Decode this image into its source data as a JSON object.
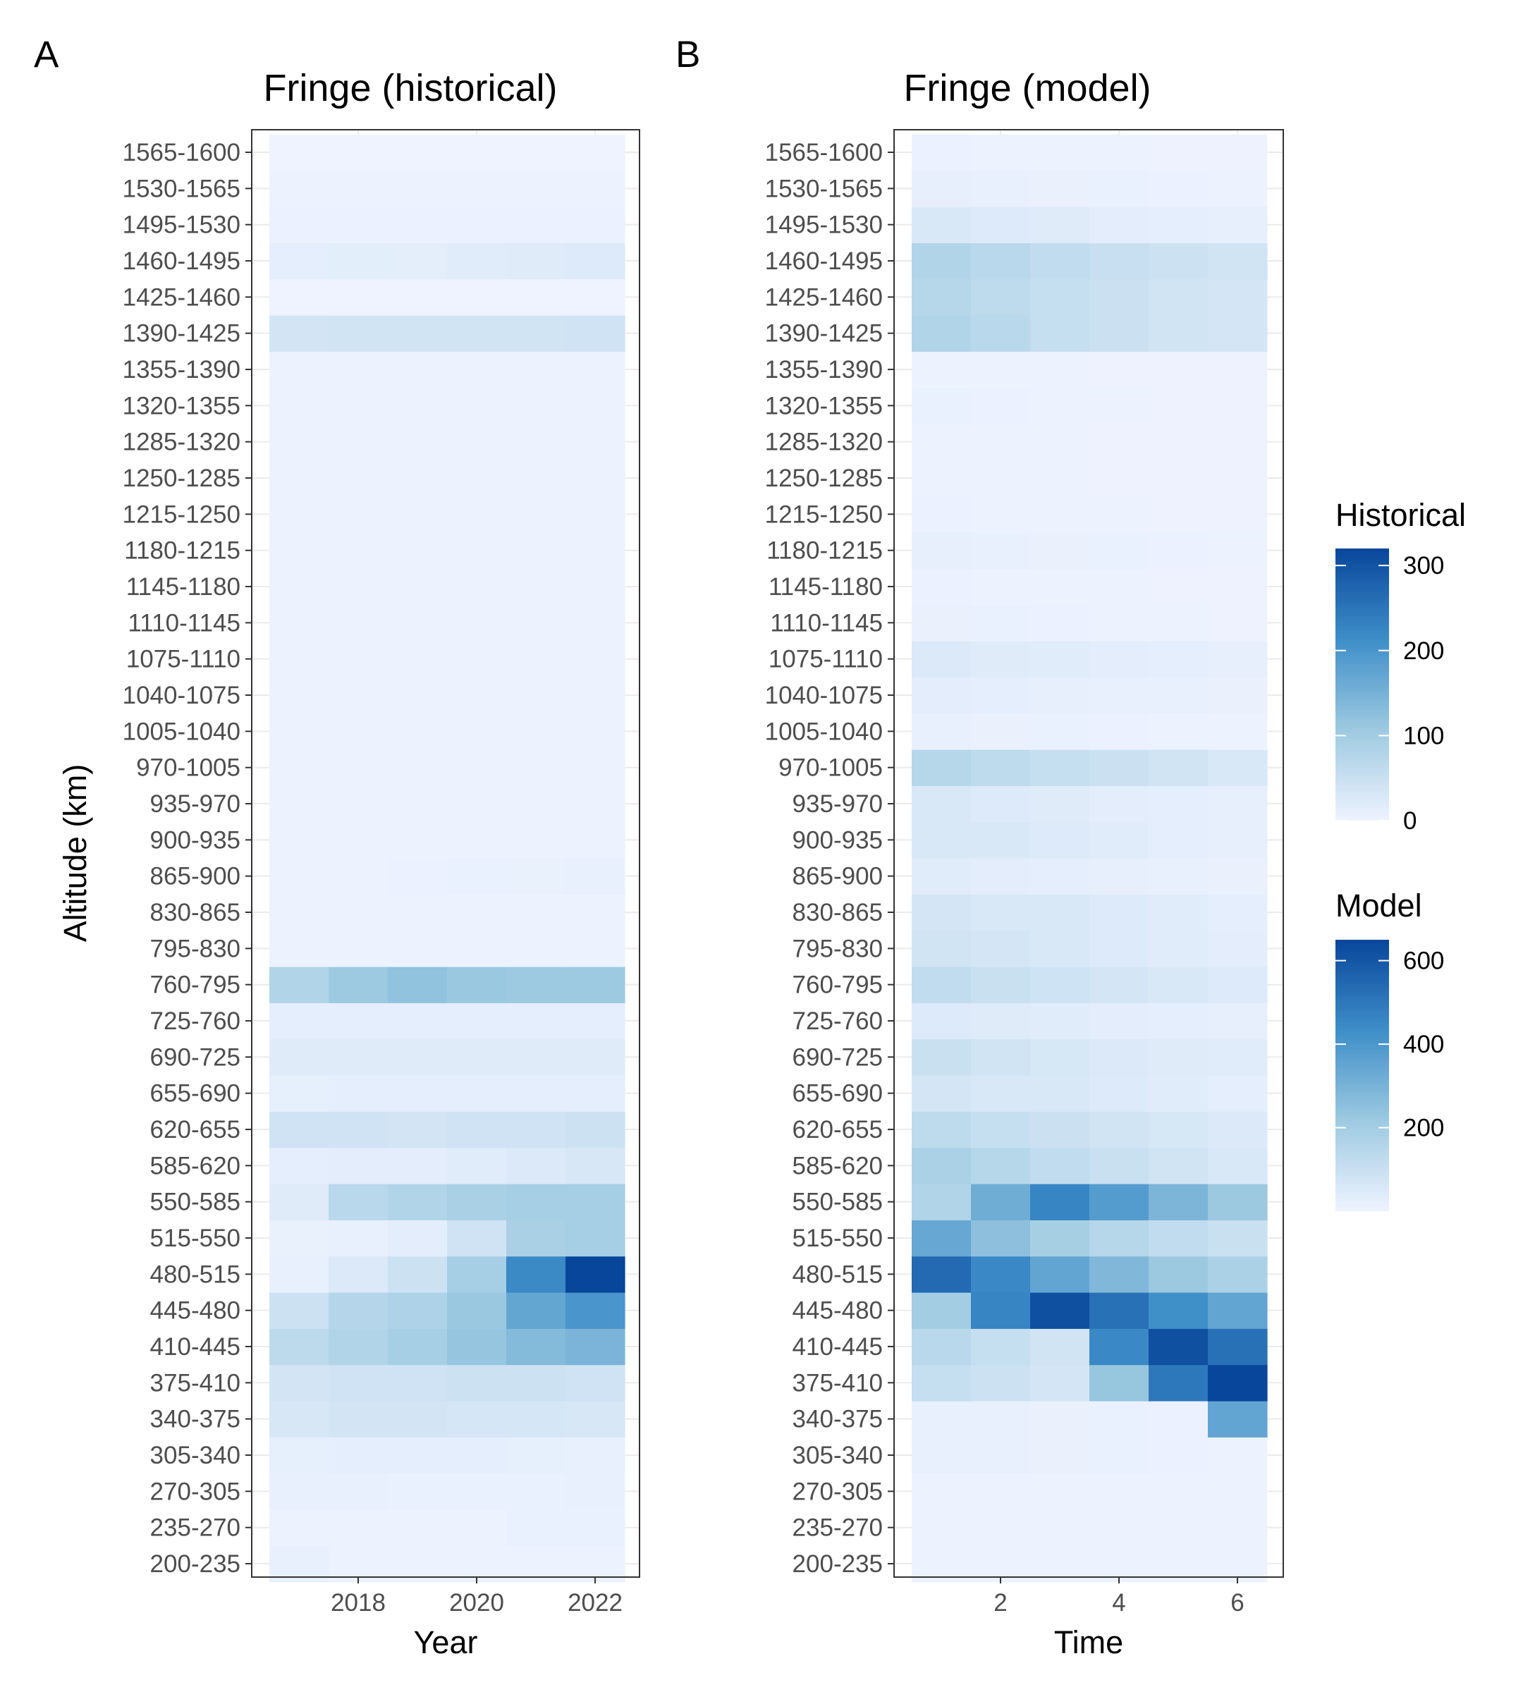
{
  "chart_data": [
    {
      "type": "heatmap",
      "tag": "A",
      "title": "Fringe (historical)",
      "xlabel": "Year",
      "ylabel": "Altitude (km)",
      "x": [
        2017,
        2018,
        2019,
        2020,
        2021,
        2022
      ],
      "x_ticks": [
        2018,
        2020,
        2022
      ],
      "xlim": [
        2016.5,
        2022.5
      ],
      "y_categories": [
        "200-235",
        "235-270",
        "270-305",
        "305-340",
        "340-375",
        "375-410",
        "410-445",
        "445-480",
        "480-515",
        "515-550",
        "550-585",
        "585-620",
        "620-655",
        "655-690",
        "690-725",
        "725-760",
        "760-795",
        "795-830",
        "830-865",
        "865-900",
        "900-935",
        "935-970",
        "970-1005",
        "1005-1040",
        "1040-1075",
        "1075-1110",
        "1110-1145",
        "1145-1180",
        "1180-1215",
        "1215-1250",
        "1250-1285",
        "1285-1320",
        "1320-1355",
        "1355-1390",
        "1390-1425",
        "1425-1460",
        "1460-1495",
        "1495-1530",
        "1530-1565",
        "1565-1600"
      ],
      "colorscale": "Historical",
      "values": [
        [
          8,
          3,
          3,
          3,
          3,
          3
        ],
        [
          3,
          3,
          3,
          3,
          5,
          5
        ],
        [
          7,
          8,
          5,
          5,
          5,
          7
        ],
        [
          10,
          12,
          12,
          12,
          10,
          8
        ],
        [
          30,
          35,
          35,
          33,
          33,
          30
        ],
        [
          35,
          40,
          40,
          45,
          45,
          40
        ],
        [
          65,
          80,
          95,
          115,
          135,
          145
        ],
        [
          45,
          75,
          85,
          110,
          170,
          200
        ],
        [
          8,
          25,
          45,
          95,
          220,
          320
        ],
        [
          6,
          8,
          15,
          40,
          90,
          95
        ],
        [
          20,
          70,
          80,
          90,
          95,
          95
        ],
        [
          12,
          15,
          15,
          17,
          25,
          30
        ],
        [
          40,
          40,
          35,
          40,
          40,
          45
        ],
        [
          10,
          12,
          12,
          12,
          12,
          12
        ],
        [
          20,
          20,
          20,
          20,
          20,
          20
        ],
        [
          12,
          12,
          12,
          12,
          12,
          12
        ],
        [
          80,
          105,
          120,
          110,
          105,
          105
        ],
        [
          2,
          2,
          2,
          2,
          2,
          2
        ],
        [
          2,
          2,
          2,
          2,
          2,
          2
        ],
        [
          3,
          3,
          4,
          5,
          6,
          7
        ],
        [
          2,
          2,
          2,
          2,
          2,
          2
        ],
        [
          2,
          2,
          2,
          2,
          2,
          2
        ],
        [
          3,
          2,
          2,
          2,
          2,
          2
        ],
        [
          2,
          2,
          2,
          2,
          2,
          2
        ],
        [
          2,
          2,
          2,
          2,
          2,
          2
        ],
        [
          2,
          2,
          2,
          2,
          2,
          2
        ],
        [
          2,
          2,
          2,
          2,
          2,
          2
        ],
        [
          2,
          2,
          2,
          2,
          2,
          2
        ],
        [
          2,
          2,
          2,
          2,
          3,
          3
        ],
        [
          2,
          2,
          2,
          2,
          2,
          2
        ],
        [
          2,
          2,
          2,
          2,
          2,
          2
        ],
        [
          2,
          2,
          2,
          2,
          2,
          2
        ],
        [
          2,
          2,
          2,
          2,
          2,
          2
        ],
        [
          2,
          2,
          2,
          2,
          2,
          2
        ],
        [
          35,
          38,
          38,
          38,
          38,
          40
        ],
        [
          0,
          0,
          0,
          0,
          0,
          0
        ],
        [
          12,
          14,
          13,
          18,
          20,
          22
        ],
        [
          4,
          4,
          4,
          4,
          4,
          4
        ],
        [
          2,
          2,
          2,
          2,
          2,
          2
        ],
        [
          0,
          0,
          0,
          0,
          0,
          0
        ]
      ]
    },
    {
      "type": "heatmap",
      "tag": "B",
      "title": "Fringe (model)",
      "xlabel": "Time",
      "ylabel": "",
      "x": [
        1,
        2,
        3,
        4,
        5,
        6
      ],
      "x_ticks": [
        2,
        4,
        6
      ],
      "xlim": [
        0.5,
        6.5
      ],
      "y_categories": [
        "200-235",
        "235-270",
        "270-305",
        "305-340",
        "340-375",
        "375-410",
        "410-445",
        "445-480",
        "480-515",
        "515-550",
        "550-585",
        "585-620",
        "620-655",
        "655-690",
        "690-725",
        "725-760",
        "760-795",
        "795-830",
        "830-865",
        "865-900",
        "900-935",
        "935-970",
        "970-1005",
        "1005-1040",
        "1040-1075",
        "1075-1110",
        "1110-1145",
        "1145-1180",
        "1180-1215",
        "1215-1250",
        "1250-1285",
        "1285-1320",
        "1320-1355",
        "1355-1390",
        "1390-1425",
        "1425-1460",
        "1460-1495",
        "1495-1530",
        "1530-1565",
        "1565-1600"
      ],
      "colorscale": "Model",
      "values": [
        [
          5,
          5,
          5,
          5,
          5,
          5
        ],
        [
          5,
          5,
          5,
          5,
          5,
          5
        ],
        [
          5,
          5,
          5,
          5,
          5,
          5
        ],
        [
          15,
          15,
          12,
          10,
          8,
          6
        ],
        [
          15,
          15,
          12,
          10,
          8,
          350
        ],
        [
          110,
          90,
          70,
          230,
          500,
          650
        ],
        [
          140,
          110,
          80,
          450,
          620,
          520
        ],
        [
          200,
          460,
          620,
          520,
          430,
          350
        ],
        [
          540,
          450,
          350,
          280,
          220,
          180
        ],
        [
          340,
          250,
          190,
          150,
          120,
          100
        ],
        [
          160,
          320,
          460,
          380,
          290,
          220
        ],
        [
          180,
          150,
          120,
          100,
          80,
          60
        ],
        [
          130,
          110,
          95,
          80,
          65,
          50
        ],
        [
          70,
          60,
          55,
          45,
          35,
          25
        ],
        [
          100,
          80,
          65,
          50,
          40,
          35
        ],
        [
          45,
          40,
          35,
          30,
          25,
          20
        ],
        [
          120,
          100,
          85,
          70,
          55,
          45
        ],
        [
          80,
          70,
          55,
          45,
          35,
          30
        ],
        [
          70,
          60,
          55,
          45,
          35,
          25
        ],
        [
          35,
          30,
          25,
          20,
          15,
          12
        ],
        [
          60,
          55,
          45,
          35,
          25,
          20
        ],
        [
          55,
          45,
          40,
          30,
          25,
          20
        ],
        [
          150,
          130,
          110,
          95,
          80,
          60
        ],
        [
          15,
          12,
          10,
          8,
          6,
          5
        ],
        [
          30,
          25,
          20,
          18,
          15,
          12
        ],
        [
          50,
          40,
          35,
          30,
          25,
          20
        ],
        [
          12,
          10,
          8,
          6,
          5,
          4
        ],
        [
          8,
          6,
          5,
          5,
          4,
          4
        ],
        [
          20,
          15,
          12,
          10,
          8,
          6
        ],
        [
          8,
          6,
          5,
          5,
          4,
          4
        ],
        [
          6,
          5,
          5,
          4,
          4,
          4
        ],
        [
          6,
          5,
          5,
          4,
          4,
          4
        ],
        [
          10,
          8,
          6,
          5,
          4,
          4
        ],
        [
          6,
          5,
          5,
          4,
          4,
          4
        ],
        [
          160,
          140,
          110,
          95,
          80,
          70
        ],
        [
          150,
          130,
          110,
          95,
          80,
          70
        ],
        [
          160,
          140,
          120,
          105,
          90,
          80
        ],
        [
          55,
          45,
          40,
          30,
          25,
          20
        ],
        [
          20,
          15,
          12,
          10,
          8,
          6
        ],
        [
          8,
          6,
          5,
          5,
          4,
          4
        ]
      ]
    }
  ],
  "legends": [
    {
      "title": "Historical",
      "min": 0,
      "max": 320,
      "ticks": [
        0,
        100,
        200,
        300
      ]
    },
    {
      "title": "Model",
      "min": 0,
      "max": 650,
      "ticks": [
        200,
        400,
        600
      ]
    }
  ],
  "colors": {
    "low": "#eef3ff",
    "mid": "#9ecae1",
    "high": "#08469b",
    "panel_border": "#333333",
    "grid": "#ebebeb"
  }
}
